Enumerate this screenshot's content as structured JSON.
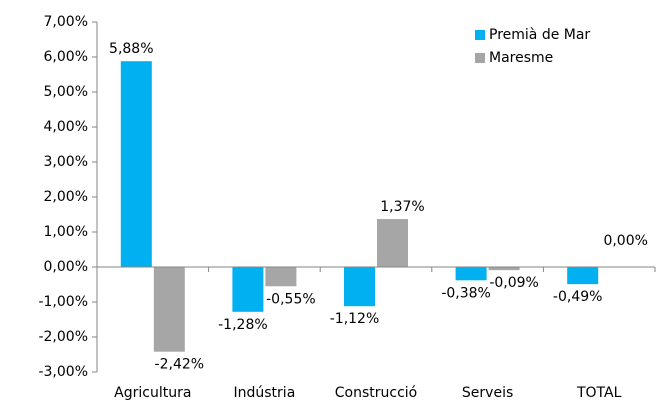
{
  "chart_data": {
    "type": "bar",
    "categories": [
      "Agricultura",
      "Indústria",
      "Construcció",
      "Serveis",
      "TOTAL"
    ],
    "series": [
      {
        "name": "Premià de Mar",
        "color": "#00b0f0",
        "values": [
          5.88,
          -1.28,
          -1.12,
          -0.38,
          -0.49
        ],
        "value_labels": [
          "5,88%",
          "-1,28%",
          "-1,12%",
          "-0,38%",
          "-0,49%"
        ]
      },
      {
        "name": "Maresme",
        "color": "#a6a6a6",
        "values": [
          -2.42,
          -0.55,
          1.37,
          -0.09,
          0.0
        ],
        "value_labels": [
          "-2,42%",
          "-0,55%",
          "1,37%",
          "-0,09%",
          "0,00%"
        ]
      }
    ],
    "ylim": [
      -3,
      7
    ],
    "yticks": [
      {
        "value": -3,
        "label": "-3,00%"
      },
      {
        "value": -2,
        "label": "-2,00%"
      },
      {
        "value": -1,
        "label": "-1,00%"
      },
      {
        "value": 0,
        "label": "0,00%"
      },
      {
        "value": 1,
        "label": "1,00%"
      },
      {
        "value": 2,
        "label": "2,00%"
      },
      {
        "value": 3,
        "label": "3,00%"
      },
      {
        "value": 4,
        "label": "4,00%"
      },
      {
        "value": 5,
        "label": "5,00%"
      },
      {
        "value": 6,
        "label": "6,00%"
      },
      {
        "value": 7,
        "label": "7,00%"
      }
    ],
    "grid": false,
    "legend": "top-right"
  }
}
